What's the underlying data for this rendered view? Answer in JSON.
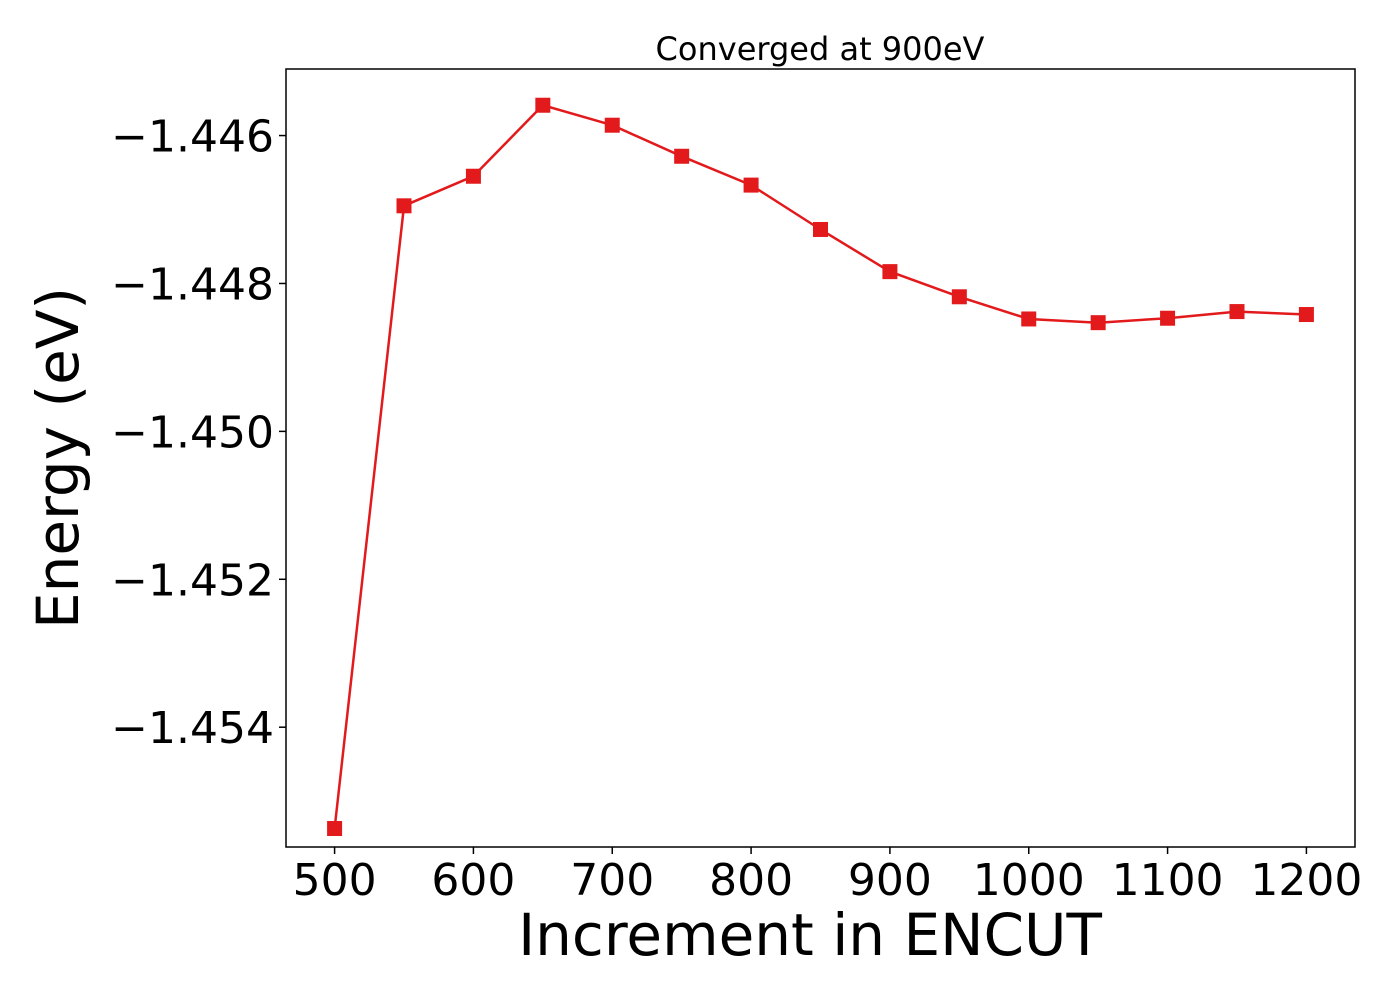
{
  "chart_data": {
    "type": "line",
    "title": "Converged at 900eV",
    "xlabel": "Increment in ENCUT",
    "ylabel": "Energy (eV)",
    "xlim": [
      465,
      1235
    ],
    "ylim": [
      -1.45562,
      -1.4451
    ],
    "x_ticks": [
      500,
      600,
      700,
      800,
      900,
      1000,
      1100,
      1200
    ],
    "x_tick_labels": [
      "500",
      "600",
      "700",
      "800",
      "900",
      "1000",
      "1100",
      "1200"
    ],
    "y_ticks": [
      -1.446,
      -1.448,
      -1.45,
      -1.452,
      -1.454
    ],
    "y_tick_labels": [
      "−1.446",
      "−1.448",
      "−1.450",
      "−1.452",
      "−1.454"
    ],
    "grid": false,
    "legend": "none",
    "marker": "square",
    "color": "#e31a1c",
    "series": [
      {
        "x": [
          500,
          550,
          600,
          650,
          700,
          750,
          800,
          850,
          900,
          950,
          1000,
          1050,
          1100,
          1150,
          1200
        ],
        "y": [
          -1.45537,
          -1.44695,
          -1.44655,
          -1.44559,
          -1.44586,
          -1.44628,
          -1.44667,
          -1.44727,
          -1.44784,
          -1.44818,
          -1.44848,
          -1.44853,
          -1.44847,
          -1.44838,
          -1.44842
        ]
      }
    ]
  }
}
